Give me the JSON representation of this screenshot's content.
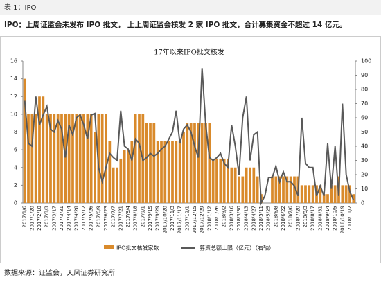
{
  "header": "表 1：IPO",
  "summary": "IPO：上周证监会未发布 IPO 批文， 上上周证监会核发 2 家 IPO 批文，合计募集资金不超过 14 亿元。",
  "source": "数据来源：证监会，天风证券研究所",
  "chart_data": {
    "type": "bar_line",
    "title": "17年以来IPO批文核发",
    "categories": [
      "2017/1/6",
      null,
      "2017/1/20",
      null,
      "2017/2/10",
      null,
      "2017/3/3",
      null,
      "2017/3/17",
      null,
      "2017/3/31",
      null,
      "2017/4/14",
      null,
      "2017/4/28",
      null,
      "2017/5/12",
      null,
      "2017/5/26",
      null,
      "2017/6/9",
      null,
      "2017/6/23",
      null,
      "2017/7/7",
      null,
      "2017/7/21",
      null,
      "2017/8/4",
      null,
      "2017/8/18",
      null,
      "2017/9/1",
      null,
      "2017/9/15",
      null,
      "2017/9/29",
      null,
      "2017/10/20",
      null,
      "2017/11/3",
      null,
      "2017/11/17",
      null,
      "2017/12/1",
      null,
      "2017/12/15",
      null,
      "2017/12/29",
      null,
      "2018/1/12",
      null,
      "2018/1/26",
      null,
      "2018/3/2",
      null,
      "2018/3/16",
      null,
      "2018/3/30",
      null,
      "2018/4/13",
      null,
      "2018/4/27",
      null,
      "2018/5/11",
      null,
      "2018/5/25",
      null,
      "2018/6/8",
      null,
      "2018/6/22",
      null,
      "2018/7/6",
      null,
      "2018/7/20",
      null,
      "2018/8/3",
      null,
      "2018/8/17",
      null,
      "2018/8/31",
      null,
      "2018/9/14",
      null,
      "2018/10/5",
      null,
      "2018/10/19",
      null,
      "2018/11/2",
      null
    ],
    "series": [
      {
        "name": "IPO批文核发家数",
        "color": "#d98a2b",
        "values": [
          14,
          10,
          10,
          10,
          12,
          12,
          10,
          10,
          10,
          10,
          10,
          10,
          10,
          10,
          10,
          10,
          10,
          10,
          10,
          8,
          10,
          10,
          10,
          7,
          4,
          4,
          5,
          6,
          6,
          7,
          10,
          10,
          10,
          9,
          9,
          9,
          7,
          7,
          7,
          7,
          7,
          7,
          7,
          8,
          9,
          9,
          9,
          9,
          9,
          9,
          9,
          5,
          5,
          5,
          5,
          5,
          4,
          4,
          3,
          3,
          4,
          4,
          4,
          3,
          1,
          0,
          0,
          3,
          3,
          3,
          3,
          3,
          3,
          3,
          3,
          2,
          2,
          2,
          2,
          2,
          2,
          1,
          1,
          2,
          2,
          3,
          2,
          2,
          2,
          1
        ]
      },
      {
        "name": "募资总额上限（亿元）（右轴）",
        "color": "#595959",
        "axis": "y2",
        "values": [
          72,
          42,
          40,
          75,
          55,
          62,
          68,
          52,
          50,
          58,
          52,
          32,
          55,
          48,
          60,
          62,
          55,
          45,
          62,
          63,
          25,
          15,
          25,
          35,
          32,
          30,
          65,
          40,
          38,
          30,
          45,
          42,
          30,
          32,
          35,
          33,
          35,
          38,
          40,
          45,
          50,
          65,
          42,
          52,
          55,
          50,
          40,
          32,
          95,
          55,
          32,
          30,
          32,
          35,
          28,
          25,
          55,
          40,
          20,
          60,
          75,
          30,
          48,
          50,
          0,
          5,
          18,
          18,
          26,
          15,
          22,
          15,
          15,
          12,
          5,
          60,
          28,
          25,
          25,
          5,
          12,
          5,
          42,
          10,
          40,
          5,
          70,
          20,
          8,
          2
        ]
      }
    ],
    "ylim": [
      0,
      16
    ],
    "yticks": [
      0,
      2,
      4,
      6,
      8,
      10,
      12,
      14,
      16
    ],
    "y2lim": [
      0,
      100
    ],
    "y2ticks": [
      0,
      10,
      20,
      30,
      40,
      50,
      60,
      70,
      80,
      90,
      100
    ]
  }
}
